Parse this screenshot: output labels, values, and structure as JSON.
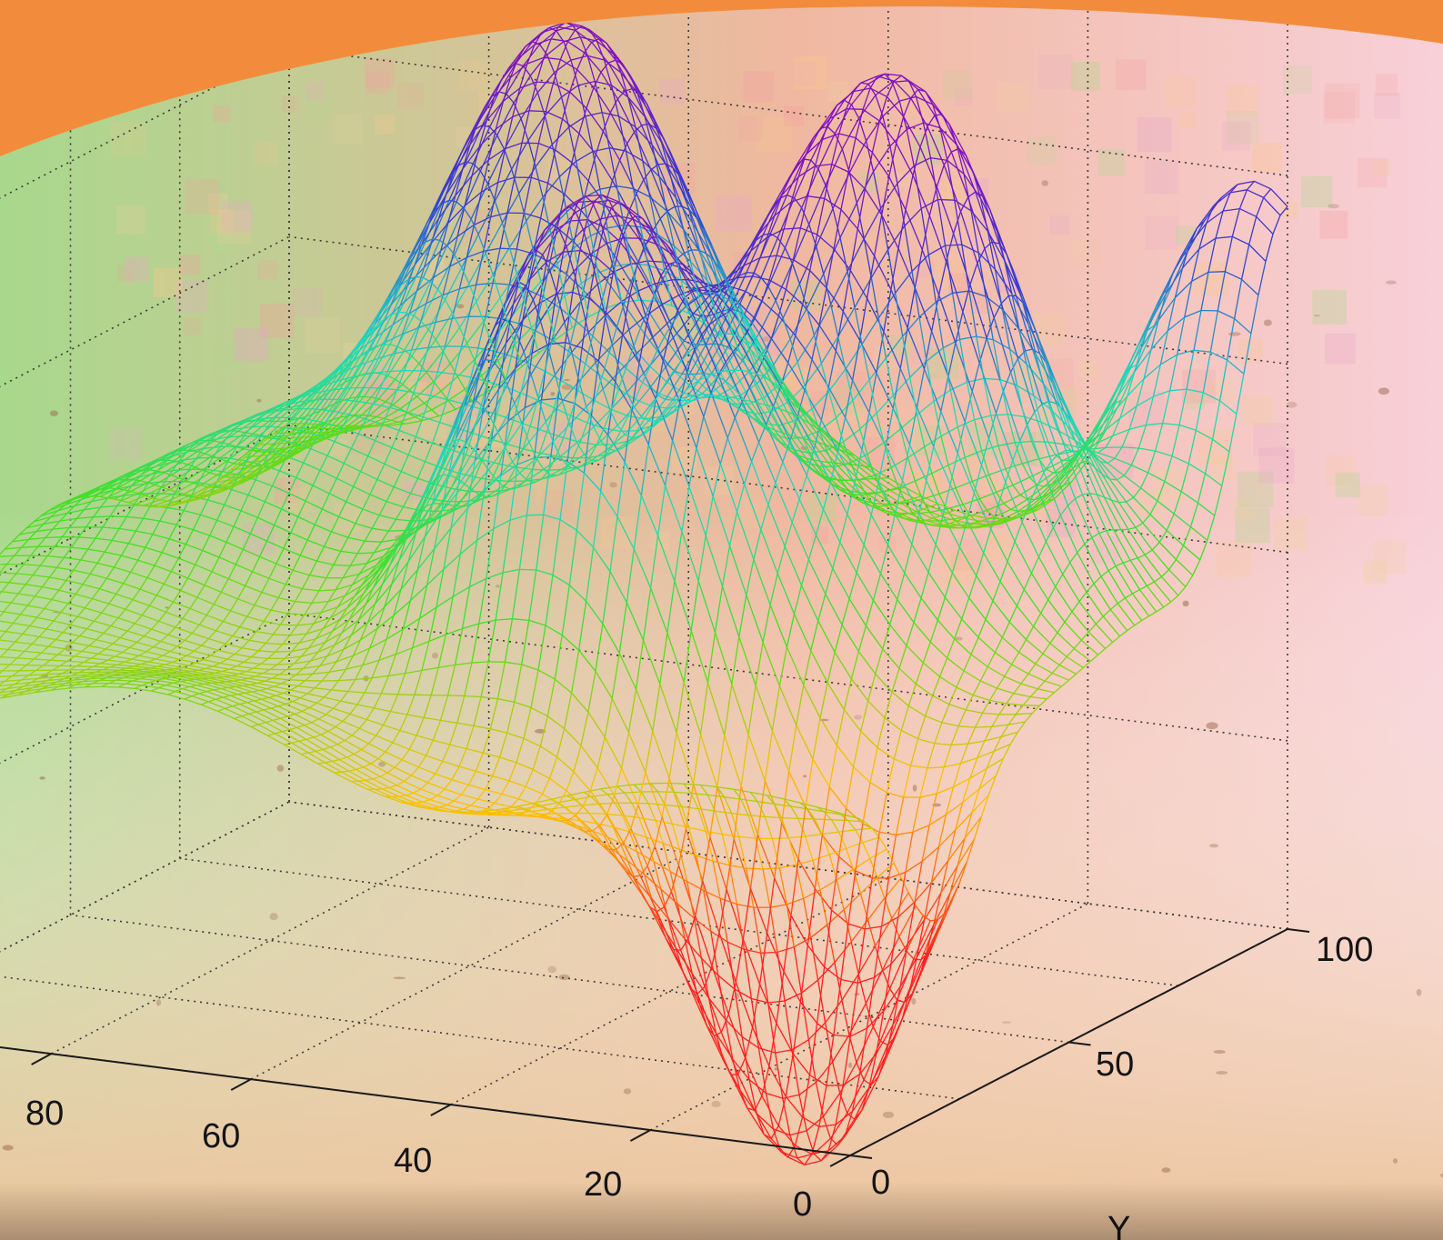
{
  "colors": {
    "banner": "#f28c3c",
    "background_left": "#a8d88c",
    "background_mid": "#f0b8a0",
    "background_right": "#f8d0d8",
    "floor": "#ecc49c",
    "colormap": [
      "#ff1e1e",
      "#ffc000",
      "#40e020",
      "#20d8c0",
      "#3040d0",
      "#8010c0"
    ]
  },
  "chart_data": {
    "type": "surface",
    "style": "wireframe mesh",
    "colormap": "z-height rainbow (low = red/yellow, mid = green/cyan, high = blue/violet)",
    "grid": true,
    "grid_style": "dotted",
    "xaxis": {
      "ticks": [
        0,
        20,
        40,
        60,
        80
      ],
      "tick_labels": [
        "0",
        "20",
        "40",
        "60",
        "80"
      ],
      "range": [
        0,
        100
      ],
      "label": ""
    },
    "yaxis": {
      "ticks": [
        0,
        50,
        100
      ],
      "tick_labels": [
        "0",
        "50",
        "100"
      ],
      "range": [
        0,
        100
      ],
      "label": "Y"
    },
    "zaxis": {
      "tick_labels": [],
      "label": ""
    },
    "surface_features": {
      "peaks": [
        {
          "x": 65,
          "y": 85
        },
        {
          "x": 28,
          "y": 60
        },
        {
          "x": 4,
          "y": 100
        },
        {
          "x": 36,
          "y": 35
        },
        {
          "x": 48,
          "y": 38
        },
        {
          "x": 20,
          "y": 70
        }
      ],
      "valleys": [
        {
          "x": 12,
          "y": 20
        },
        {
          "x": 8,
          "y": 20
        },
        {
          "x": 22,
          "y": 20
        }
      ]
    }
  }
}
